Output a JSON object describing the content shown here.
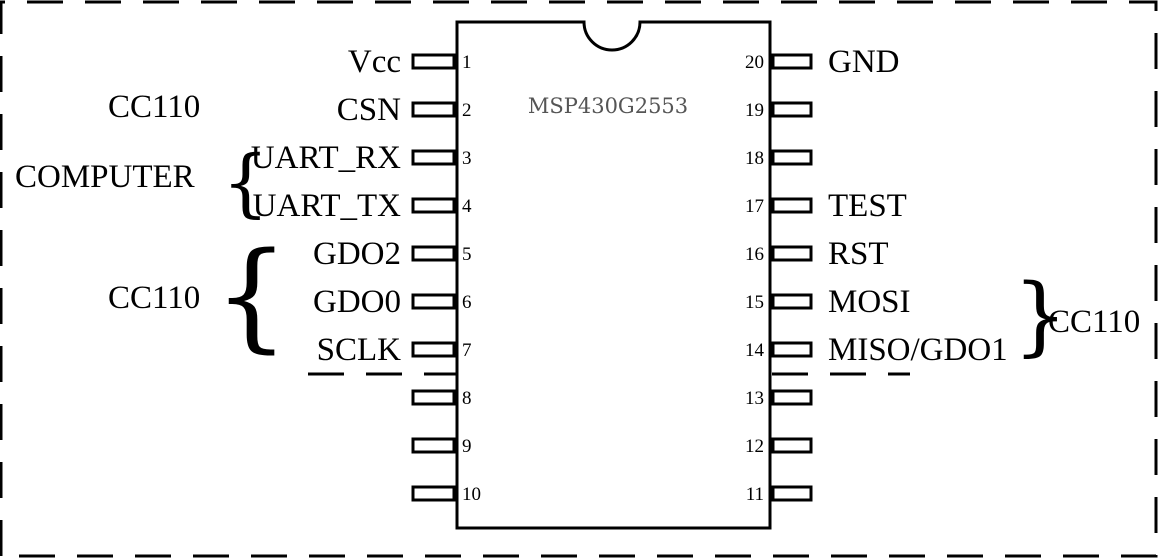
{
  "chip": {
    "name": "MSP430G2553"
  },
  "left_pins": [
    {
      "num": "1",
      "label": "Vcc"
    },
    {
      "num": "2",
      "label": "CSN"
    },
    {
      "num": "3",
      "label": "UART_RX"
    },
    {
      "num": "4",
      "label": "UART_TX"
    },
    {
      "num": "5",
      "label": "GDO2"
    },
    {
      "num": "6",
      "label": "GDO0"
    },
    {
      "num": "7",
      "label": "SCLK"
    },
    {
      "num": "8",
      "label": ""
    },
    {
      "num": "9",
      "label": ""
    },
    {
      "num": "10",
      "label": ""
    }
  ],
  "right_pins": [
    {
      "num": "20",
      "label": "GND"
    },
    {
      "num": "19",
      "label": ""
    },
    {
      "num": "18",
      "label": ""
    },
    {
      "num": "17",
      "label": "TEST"
    },
    {
      "num": "16",
      "label": "RST"
    },
    {
      "num": "15",
      "label": "MOSI"
    },
    {
      "num": "14",
      "label": "MISO/GDO1"
    },
    {
      "num": "13",
      "label": ""
    },
    {
      "num": "12",
      "label": ""
    },
    {
      "num": "11",
      "label": ""
    }
  ],
  "groups": {
    "csn_group": "CC110",
    "uart_group": "COMPUTER",
    "gdo_group": "CC110",
    "spi_group": "CC110"
  }
}
